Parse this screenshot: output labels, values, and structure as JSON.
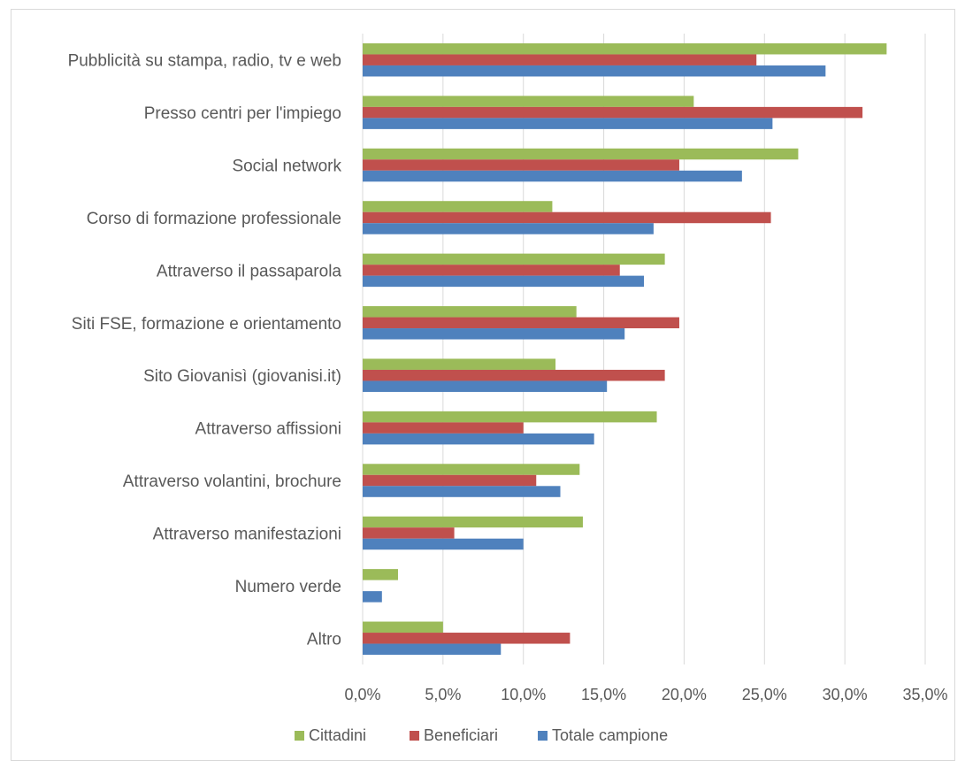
{
  "chart_data": {
    "type": "bar",
    "orientation": "horizontal",
    "categories": [
      "Pubblicità su stampa, radio, tv e web",
      "Presso centri per l'impiego",
      "Social network",
      "Corso di formazione professionale",
      "Attraverso il passaparola",
      "Siti FSE, formazione e orientamento",
      "Sito Giovanisì (giovanisi.it)",
      "Attraverso affissioni",
      "Attraverso volantini, brochure",
      "Attraverso manifestazioni",
      "Numero verde",
      "Altro"
    ],
    "series": [
      {
        "name": "Cittadini",
        "color": "#9bbb59",
        "values": [
          32.6,
          20.6,
          27.1,
          11.8,
          18.8,
          13.3,
          12.0,
          18.3,
          13.5,
          13.7,
          2.2,
          5.0
        ]
      },
      {
        "name": "Beneficiari",
        "color": "#c0504d",
        "values": [
          24.5,
          31.1,
          19.7,
          25.4,
          16.0,
          19.7,
          18.8,
          10.0,
          10.8,
          5.7,
          0.0,
          12.9
        ]
      },
      {
        "name": "Totale campione",
        "color": "#4f81bd",
        "values": [
          28.8,
          25.5,
          23.6,
          18.1,
          17.5,
          16.3,
          15.2,
          14.4,
          12.3,
          10.0,
          1.2,
          8.6
        ]
      }
    ],
    "x_ticks": [
      "0,0%",
      "5,0%",
      "10,0%",
      "15,0%",
      "20,0%",
      "25,0%",
      "30,0%",
      "35,0%"
    ],
    "xlim": [
      0,
      35
    ],
    "grid": true,
    "legend_position": "bottom"
  }
}
